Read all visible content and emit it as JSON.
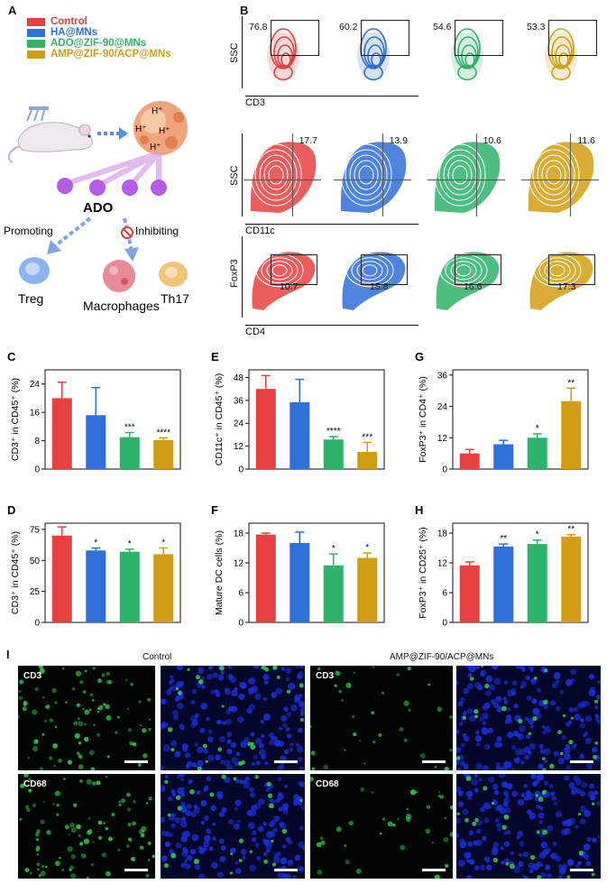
{
  "panels": {
    "A": "A",
    "B": "B",
    "C": "C",
    "D": "D",
    "E": "E",
    "F": "F",
    "G": "G",
    "H": "H",
    "I": "I"
  },
  "legend": [
    {
      "label": "Control",
      "color": "#e8403f"
    },
    {
      "label": "HA@MNs",
      "color": "#2f6fd8"
    },
    {
      "label": "ADO@ZIF-90@MNs",
      "color": "#2fb36a"
    },
    {
      "label": "AMP@ZIF-90/ACP@MNs",
      "color": "#d19d12"
    }
  ],
  "schematic": {
    "ado": "ADO",
    "promoting": "Promoting",
    "inhibiting": "Inhibiting",
    "treg": "Treg",
    "macrophages": "Macrophages",
    "th17": "Th17",
    "h1": "H⁺",
    "h2": "H⁺",
    "h3": "H⁺",
    "h4": "H⁺"
  },
  "flow": {
    "rows": [
      {
        "y_axis": "SSC",
        "x_axis": "CD3",
        "values": [
          "76.8",
          "60.2",
          "54.6",
          "53.3"
        ]
      },
      {
        "y_axis": "SSC",
        "x_axis": "CD11c",
        "values": [
          "17.7",
          "13.9",
          "10.6",
          "11.6"
        ]
      },
      {
        "y_axis": "FoxP3",
        "x_axis": "CD4",
        "values": [
          "10.7",
          "15.8",
          "16.6",
          "17.3"
        ]
      }
    ]
  },
  "chart_data": [
    {
      "panel": "C",
      "type": "bar",
      "ylabel": "CD3⁺ in CD45⁺ (%)",
      "ylim": [
        0,
        28
      ],
      "yticks": [
        0,
        8,
        16,
        24
      ],
      "categories": [
        "Control",
        "HA@MNs",
        "ADO@ZIF-90@MNs",
        "AMP@ZIF-90/ACP@MNs"
      ],
      "values": [
        20,
        15.2,
        9,
        8.2
      ],
      "errors": [
        4.5,
        7.8,
        1.3,
        0.6
      ],
      "sig": [
        "",
        "",
        "***",
        "****"
      ]
    },
    {
      "panel": "D",
      "type": "bar",
      "ylabel": "CD3⁺ in CD45⁺ (%)",
      "ylim": [
        0,
        80
      ],
      "yticks": [
        0,
        25,
        50,
        75
      ],
      "categories": [
        "Control",
        "HA@MNs",
        "ADO@ZIF-90@MNs",
        "AMP@ZIF-90/ACP@MNs"
      ],
      "values": [
        70,
        58,
        57,
        55
      ],
      "errors": [
        7,
        2,
        2,
        5
      ],
      "sig": [
        "",
        "*",
        "*",
        "*"
      ]
    },
    {
      "panel": "E",
      "type": "bar",
      "ylabel": "CD11c⁺ in CD45⁺ (%)",
      "ylim": [
        0,
        52
      ],
      "yticks": [
        0,
        12,
        24,
        36,
        48
      ],
      "categories": [
        "Control",
        "HA@MNs",
        "ADO@ZIF-90@MNs",
        "AMP@ZIF-90/ACP@MNs"
      ],
      "values": [
        42,
        35,
        15.5,
        9
      ],
      "errors": [
        7,
        12,
        1.5,
        5
      ],
      "sig": [
        "",
        "",
        "****",
        "***"
      ]
    },
    {
      "panel": "F",
      "type": "bar",
      "ylabel": "Mature DC cells (%)",
      "ylim": [
        0,
        20
      ],
      "yticks": [
        0,
        6,
        12,
        18
      ],
      "categories": [
        "Control",
        "HA@MNs",
        "ADO@ZIF-90@MNs",
        "AMP@ZIF-90/ACP@MNs"
      ],
      "values": [
        17.7,
        16,
        11.5,
        13
      ],
      "errors": [
        0.3,
        2.2,
        2.3,
        1
      ],
      "sig": [
        "",
        "",
        "*",
        "*"
      ]
    },
    {
      "panel": "G",
      "type": "bar",
      "ylabel": "FoxP3⁺ in CD4⁺ (%)",
      "ylim": [
        0,
        38
      ],
      "yticks": [
        0,
        12,
        24,
        36
      ],
      "categories": [
        "Control",
        "HA@MNs",
        "ADO@ZIF-90@MNs",
        "AMP@ZIF-90/ACP@MNs"
      ],
      "values": [
        6,
        9.5,
        12,
        26
      ],
      "errors": [
        1.5,
        1.5,
        1.5,
        5
      ],
      "sig": [
        "",
        "",
        "*",
        "**"
      ]
    },
    {
      "panel": "H",
      "type": "bar",
      "ylabel": "FoxP3⁺ in CD25⁺ (%)",
      "ylim": [
        0,
        20
      ],
      "yticks": [
        0,
        6,
        12,
        18
      ],
      "categories": [
        "Control",
        "HA@MNs",
        "ADO@ZIF-90@MNs",
        "AMP@ZIF-90/ACP@MNs"
      ],
      "values": [
        11.5,
        15.3,
        15.8,
        17.3
      ],
      "errors": [
        0.7,
        0.5,
        0.8,
        0.4
      ],
      "sig": [
        "",
        "**",
        "*",
        "**"
      ]
    }
  ],
  "imaging": {
    "group_left": "Control",
    "group_right": "AMP@ZIF-90/ACP@MNs",
    "row_labels": [
      "CD3",
      "CD68"
    ]
  }
}
